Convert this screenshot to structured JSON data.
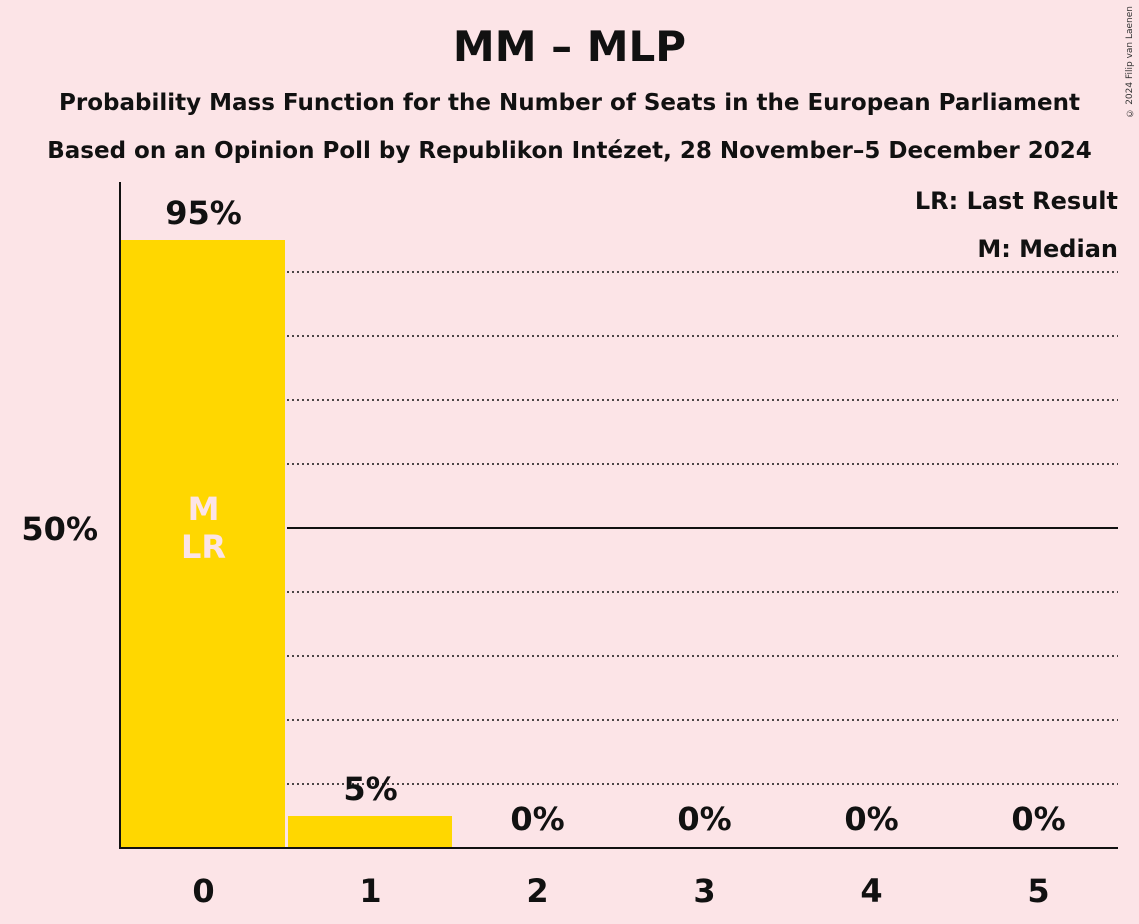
{
  "title": "MM – MLP",
  "subtitle1": "Probability Mass Function for the Number of Seats in the European Parliament",
  "subtitle2": "Based on an Opinion Poll by Republikon Intézet, 28 November–5 December 2024",
  "copyright": "© 2024 Filip van Laenen",
  "legend": {
    "last_result": "LR: Last Result",
    "median": "M: Median"
  },
  "colors": {
    "background": "#fce4e7",
    "bar": "#ffd700",
    "marker_text": "#fce4e7",
    "text": "#111111"
  },
  "chart_data": {
    "type": "bar",
    "categories": [
      "0",
      "1",
      "2",
      "3",
      "4",
      "5"
    ],
    "values": [
      95,
      5,
      0,
      0,
      0,
      0
    ],
    "value_labels": [
      "95%",
      "5%",
      "0%",
      "0%",
      "0%",
      "0%"
    ],
    "ylim": [
      0,
      100
    ],
    "ytick_label": "50%",
    "ytick_value": 50,
    "gridlines": [
      10,
      20,
      30,
      40,
      60,
      70,
      80,
      90
    ],
    "median_category": "0",
    "last_result_category": "0",
    "bar_markers": [
      "M",
      "LR"
    ],
    "legend_position": "top-right"
  }
}
